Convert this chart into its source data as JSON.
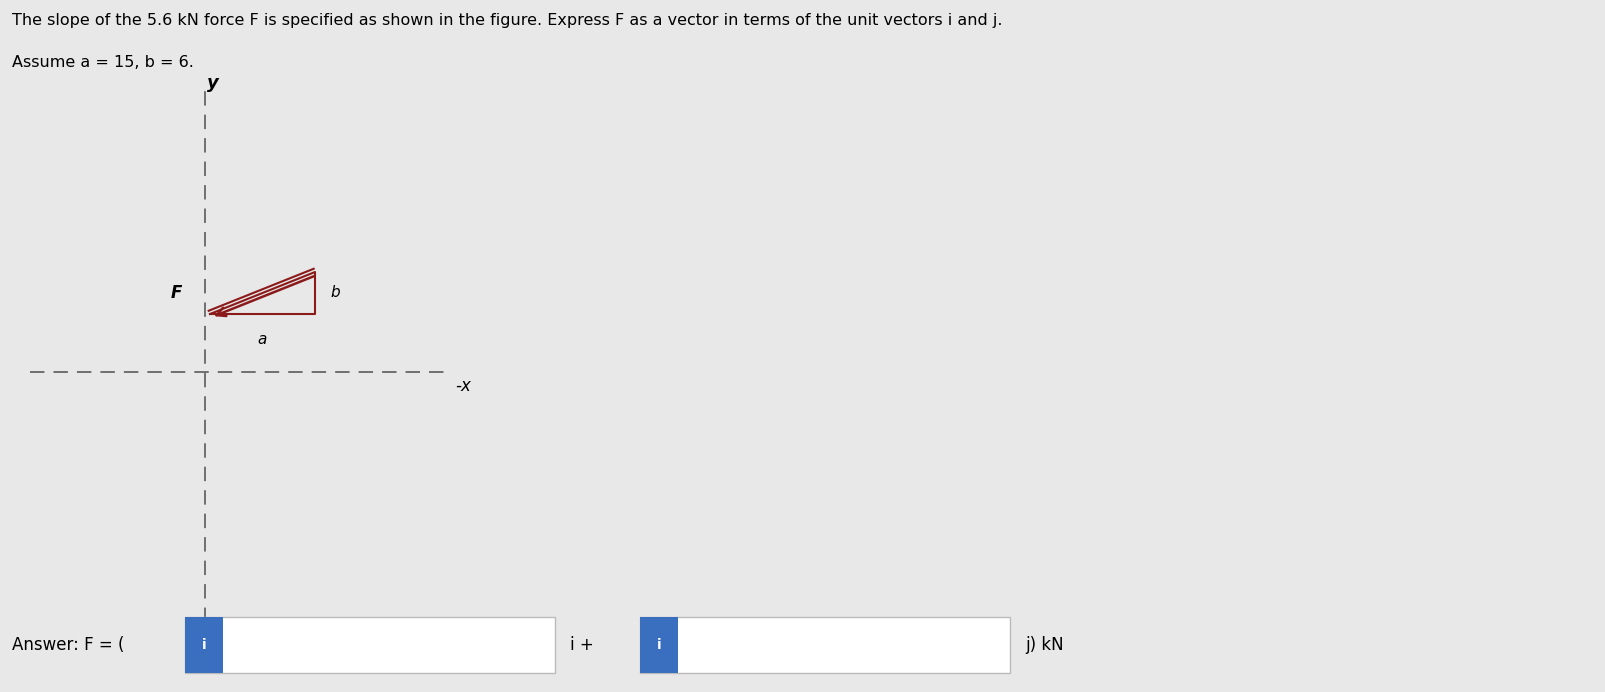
{
  "title_line1": "The slope of the 5.6 kN force F is specified as shown in the figure. Express F as a vector in terms of the unit vectors i and j.",
  "title_line2": "Assume a = 15, b = 6.",
  "bg_color": "#e8e8e8",
  "axis_color": "#666666",
  "arrow_color": "#8b1a1a",
  "triangle_color": "#8b1a1a",
  "answer_text": "Answer: F = (",
  "answer_mid": "i +",
  "answer_end": "j) kN",
  "input_box_color": "#3a6fbf",
  "input_box_text": "i",
  "fig_width": 16.05,
  "fig_height": 6.92,
  "dpi": 100,
  "y_label": "y",
  "x_label": "x",
  "F_label": "F",
  "a_label": "a",
  "b_label": "b"
}
